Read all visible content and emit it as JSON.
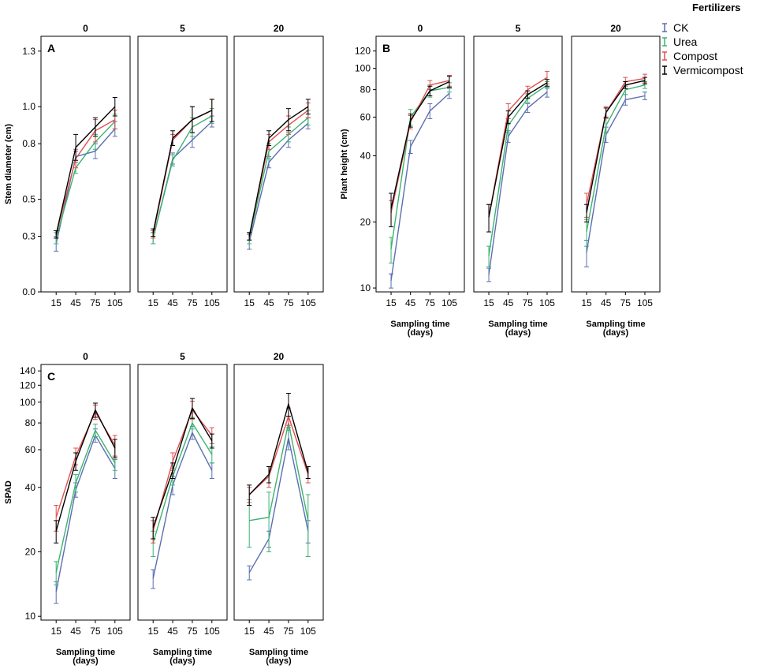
{
  "legend": {
    "title": "Fertilizers",
    "entries": [
      {
        "name": "CK",
        "color": "#5b6fb0"
      },
      {
        "name": "Urea",
        "color": "#3cb371"
      },
      {
        "name": "Compost",
        "color": "#e05050"
      },
      {
        "name": "Vermicompost",
        "color": "#000000"
      }
    ]
  },
  "chart_data": [
    {
      "id": "A",
      "letter": "A",
      "type": "line",
      "scale": "linear",
      "ylabel": "Stem diameter (cm)",
      "xlabel": "",
      "ylim": [
        0,
        1.38
      ],
      "yticks": [
        {
          "v": 0.0,
          "label": "0.0"
        },
        {
          "v": 0.3,
          "label": "0.3"
        },
        {
          "v": 0.5,
          "label": "0.5"
        },
        {
          "v": 0.8,
          "label": "0.8"
        },
        {
          "v": 1.0,
          "label": "1.0"
        },
        {
          "v": 1.3,
          "label": "1.3"
        }
      ],
      "x": [
        "15",
        "45",
        "75",
        "105"
      ],
      "panels": [
        {
          "title": "0",
          "series": [
            {
              "name": "CK",
              "values": [
                0.26,
                0.73,
                0.76,
                0.88
              ],
              "err": [
                0.04,
                0.03,
                0.04,
                0.04
              ]
            },
            {
              "name": "Urea",
              "values": [
                0.29,
                0.67,
                0.81,
                0.92
              ],
              "err": [
                0.03,
                0.03,
                0.04,
                0.04
              ]
            },
            {
              "name": "Compost",
              "values": [
                0.31,
                0.72,
                0.87,
                0.93
              ],
              "err": [
                0.02,
                0.05,
                0.06,
                0.05
              ]
            },
            {
              "name": "Vermicompost",
              "values": [
                0.31,
                0.78,
                0.89,
                1.0
              ],
              "err": [
                0.02,
                0.07,
                0.05,
                0.05
              ]
            }
          ]
        },
        {
          "title": "5",
          "series": [
            {
              "name": "CK",
              "values": [
                0.29,
                0.72,
                0.82,
                0.92
              ],
              "err": [
                0.03,
                0.03,
                0.04,
                0.03
              ]
            },
            {
              "name": "Urea",
              "values": [
                0.29,
                0.71,
                0.89,
                0.95
              ],
              "err": [
                0.03,
                0.03,
                0.05,
                0.04
              ]
            },
            {
              "name": "Compost",
              "values": [
                0.31,
                0.82,
                0.93,
                0.98
              ],
              "err": [
                0.02,
                0.03,
                0.07,
                0.06
              ]
            },
            {
              "name": "Vermicompost",
              "values": [
                0.32,
                0.83,
                0.93,
                0.98
              ],
              "err": [
                0.02,
                0.04,
                0.07,
                0.06
              ]
            }
          ]
        },
        {
          "title": "20",
          "series": [
            {
              "name": "CK",
              "values": [
                0.27,
                0.7,
                0.82,
                0.91
              ],
              "err": [
                0.04,
                0.03,
                0.04,
                0.03
              ]
            },
            {
              "name": "Urea",
              "values": [
                0.29,
                0.76,
                0.85,
                0.94
              ],
              "err": [
                0.03,
                0.04,
                0.04,
                0.04
              ]
            },
            {
              "name": "Compost",
              "values": [
                0.3,
                0.81,
                0.9,
                0.98
              ],
              "err": [
                0.02,
                0.04,
                0.05,
                0.04
              ]
            },
            {
              "name": "Vermicompost",
              "values": [
                0.3,
                0.83,
                0.93,
                1.0
              ],
              "err": [
                0.02,
                0.04,
                0.06,
                0.04
              ]
            }
          ]
        }
      ]
    },
    {
      "id": "B",
      "letter": "B",
      "type": "line",
      "scale": "log",
      "ylabel": "Plant height (cm)",
      "xlabel": "Sampling time\n(days)",
      "ylim": [
        9.6,
        140
      ],
      "yticks": [
        {
          "v": 10,
          "label": "10"
        },
        {
          "v": 20,
          "label": "20"
        },
        {
          "v": 40,
          "label": "40"
        },
        {
          "v": 60,
          "label": "60"
        },
        {
          "v": 80,
          "label": "80"
        },
        {
          "v": 100,
          "label": "100"
        },
        {
          "v": 120,
          "label": "120"
        }
      ],
      "x": [
        "15",
        "45",
        "75",
        "105"
      ],
      "panels": [
        {
          "title": "0",
          "series": [
            {
              "name": "CK",
              "values": [
                10.8,
                44,
                64,
                77
              ],
              "err": [
                0.8,
                3,
                5,
                4
              ]
            },
            {
              "name": "Urea",
              "values": [
                15,
                60,
                79,
                82
              ],
              "err": [
                2,
                5,
                5,
                4
              ]
            },
            {
              "name": "Compost",
              "values": [
                22,
                57,
                84,
                88
              ],
              "err": [
                3,
                4,
                4,
                5
              ]
            },
            {
              "name": "Vermicompost",
              "values": [
                23,
                58,
                79,
                87
              ],
              "err": [
                4,
                4,
                4,
                5
              ]
            }
          ]
        },
        {
          "title": "5",
          "series": [
            {
              "name": "CK",
              "values": [
                11.5,
                49,
                66,
                78
              ],
              "err": [
                0.8,
                3,
                3,
                4
              ]
            },
            {
              "name": "Urea",
              "values": [
                14,
                55,
                73,
                84
              ],
              "err": [
                1.5,
                4,
                3,
                3
              ]
            },
            {
              "name": "Compost",
              "values": [
                21,
                64,
                80,
                91
              ],
              "err": [
                3,
                5,
                3,
                6
              ]
            },
            {
              "name": "Vermicompost",
              "values": [
                21,
                60,
                76,
                86
              ],
              "err": [
                3,
                4,
                3,
                3
              ]
            }
          ]
        },
        {
          "title": "20",
          "series": [
            {
              "name": "CK",
              "values": [
                14.5,
                50,
                72,
                75
              ],
              "err": [
                2,
                4,
                4,
                3
              ]
            },
            {
              "name": "Urea",
              "values": [
                18,
                55,
                80,
                84
              ],
              "err": [
                2.5,
                4,
                4,
                3
              ]
            },
            {
              "name": "Compost",
              "values": [
                24,
                63,
                87,
                90
              ],
              "err": [
                3,
                4,
                4,
                4
              ]
            },
            {
              "name": "Vermicompost",
              "values": [
                22,
                63,
                84,
                88
              ],
              "err": [
                2,
                3,
                3,
                3
              ]
            }
          ]
        }
      ]
    },
    {
      "id": "C",
      "letter": "C",
      "type": "line",
      "scale": "log",
      "ylabel": "SPAD",
      "xlabel": "Sampling time\n(days)",
      "ylim": [
        9.6,
        150
      ],
      "yticks": [
        {
          "v": 10,
          "label": "10"
        },
        {
          "v": 20,
          "label": "20"
        },
        {
          "v": 40,
          "label": "40"
        },
        {
          "v": 60,
          "label": "60"
        },
        {
          "v": 80,
          "label": "80"
        },
        {
          "v": 100,
          "label": "100"
        },
        {
          "v": 120,
          "label": "120"
        },
        {
          "v": 140,
          "label": "140"
        }
      ],
      "x": [
        "15",
        "45",
        "75",
        "105"
      ],
      "panels": [
        {
          "title": "0",
          "series": [
            {
              "name": "CK",
              "values": [
                13,
                39,
                70,
                49
              ],
              "err": [
                1.5,
                3,
                5,
                5
              ]
            },
            {
              "name": "Urea",
              "values": [
                16,
                42,
                74,
                52
              ],
              "err": [
                2,
                4,
                5,
                4
              ]
            },
            {
              "name": "Compost",
              "values": [
                29,
                56,
                90,
                63
              ],
              "err": [
                4,
                5,
                7,
                7
              ]
            },
            {
              "name": "Vermicompost",
              "values": [
                25,
                53,
                92,
                61
              ],
              "err": [
                3,
                5,
                7,
                6
              ]
            }
          ]
        },
        {
          "title": "5",
          "series": [
            {
              "name": "CK",
              "values": [
                15,
                41,
                72,
                48
              ],
              "err": [
                1.5,
                4,
                5,
                4
              ]
            },
            {
              "name": "Urea",
              "values": [
                22,
                45,
                80,
                57
              ],
              "err": [
                3,
                4,
                5,
                5
              ]
            },
            {
              "name": "Compost",
              "values": [
                25,
                53,
                92,
                70
              ],
              "err": [
                3,
                5,
                9,
                6
              ]
            },
            {
              "name": "Vermicompost",
              "values": [
                26,
                48,
                94,
                66
              ],
              "err": [
                3,
                4,
                10,
                5
              ]
            }
          ]
        },
        {
          "title": "20",
          "series": [
            {
              "name": "CK",
              "values": [
                16,
                23,
                68,
                25
              ],
              "err": [
                1.2,
                2,
                8,
                3
              ]
            },
            {
              "name": "Urea",
              "values": [
                28,
                29,
                80,
                28
              ],
              "err": [
                7,
                9,
                6,
                9
              ]
            },
            {
              "name": "Compost",
              "values": [
                37,
                45,
                86,
                46
              ],
              "err": [
                3,
                5,
                8,
                4
              ]
            },
            {
              "name": "Vermicompost",
              "values": [
                37,
                46,
                98,
                47
              ],
              "err": [
                4,
                4,
                12,
                3
              ]
            }
          ]
        }
      ]
    }
  ]
}
